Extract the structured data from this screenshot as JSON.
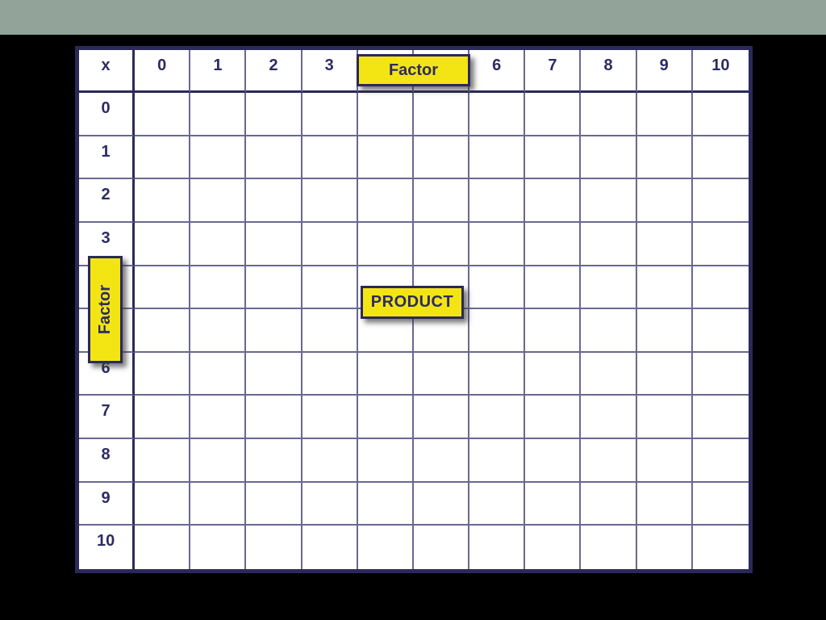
{
  "table": {
    "corner_label": "x",
    "column_headers": [
      "0",
      "1",
      "2",
      "3",
      "",
      "",
      "6",
      "7",
      "8",
      "9",
      "10"
    ],
    "row_headers": [
      "0",
      "1",
      "2",
      "3",
      "",
      "",
      "6",
      "7",
      "8",
      "9",
      "10"
    ]
  },
  "labels": {
    "factor_top": "Factor",
    "factor_left": "Factor",
    "product": "PRODUCT"
  },
  "colors": {
    "top_bar": "#92a399",
    "background": "#000000",
    "table_bg": "#ffffff",
    "grid_border": "#2b2959",
    "grid_line": "#6a6890",
    "cell_text": "#2d2b63",
    "highlight_yellow": "#f3e514"
  }
}
